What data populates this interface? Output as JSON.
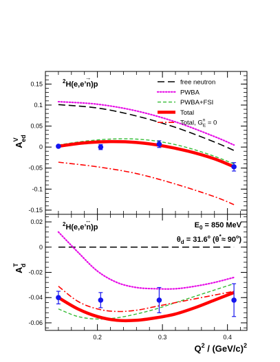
{
  "chart_data": [
    {
      "type": "line",
      "panel": "top",
      "ylabel": "A",
      "ylabel_sup": "V",
      "ylabel_sub": "ed",
      "ylim": [
        -0.16,
        0.18
      ],
      "yticks": [
        -0.15,
        -0.1,
        -0.05,
        0,
        0.05,
        0.1,
        0.15
      ],
      "ytick_labels": [
        "-0.15",
        "-0.1",
        "-0.05",
        "0",
        "0.05",
        "0.1",
        "0.15"
      ],
      "xlim": [
        0.12,
        0.43
      ],
      "reaction_label": {
        "sup": "2",
        "main": "H(e,e’n)p",
        "vec": "→"
      },
      "legend": [
        {
          "label": "free neutron",
          "style": "dash-long",
          "color": "#000000"
        },
        {
          "label": "PWBA",
          "style": "dot",
          "color": "#e60fe6"
        },
        {
          "label": "PWBA+FSI",
          "style": "dash",
          "color": "#33bb33"
        },
        {
          "label": "Total",
          "style": "solid-thick",
          "color": "#ff0000"
        },
        {
          "label": "Total, G",
          "label_sup": "n",
          "label_sub": "E",
          "label_tail": " = 0",
          "style": "dash-dot",
          "color": "#ff0000"
        }
      ],
      "series": [
        {
          "name": "free neutron",
          "color": "#000000",
          "style": "dash-long",
          "x": [
            0.14,
            0.2,
            0.26,
            0.32,
            0.38,
            0.41
          ],
          "y": [
            0.101,
            0.093,
            0.074,
            0.047,
            0.012,
            -0.008
          ]
        },
        {
          "name": "PWBA",
          "color": "#e60fe6",
          "style": "dot",
          "x": [
            0.14,
            0.2,
            0.26,
            0.32,
            0.38,
            0.41
          ],
          "y": [
            0.108,
            0.102,
            0.086,
            0.06,
            0.025,
            0.005
          ]
        },
        {
          "name": "PWBA+FSI",
          "color": "#33bb33",
          "style": "dash",
          "x": [
            0.14,
            0.18,
            0.22,
            0.26,
            0.3,
            0.34,
            0.38,
            0.41
          ],
          "y": [
            0.005,
            0.014,
            0.019,
            0.019,
            0.012,
            -0.002,
            -0.022,
            -0.04
          ]
        },
        {
          "name": "Total",
          "color": "#ff0000",
          "style": "solid-thick",
          "x": [
            0.14,
            0.18,
            0.22,
            0.26,
            0.3,
            0.34,
            0.38,
            0.41
          ],
          "y": [
            0.002,
            0.01,
            0.013,
            0.011,
            0.003,
            -0.01,
            -0.028,
            -0.047
          ]
        },
        {
          "name": "Total, GnE = 0",
          "color": "#ff0000",
          "style": "dash-dot",
          "x": [
            0.14,
            0.2,
            0.26,
            0.32,
            0.38,
            0.41
          ],
          "y": [
            -0.036,
            -0.047,
            -0.063,
            -0.088,
            -0.118,
            -0.137
          ]
        }
      ],
      "points": {
        "color": "#1515ee",
        "x": [
          0.14,
          0.205,
          0.295,
          0.41
        ],
        "y": [
          0.002,
          0.0,
          0.007,
          -0.047
        ],
        "err": [
          0.0,
          0.006,
          0.008,
          0.01
        ]
      }
    },
    {
      "type": "line",
      "panel": "bottom",
      "ylabel": "A",
      "ylabel_sup": "T",
      "ylabel_sub": "d",
      "ylim": [
        -0.066,
        0.026
      ],
      "yticks": [
        -0.06,
        -0.04,
        -0.02,
        0,
        0.02
      ],
      "ytick_labels": [
        "-0.06",
        "-0.04",
        "-0.02",
        "0",
        "0.02"
      ],
      "xlim": [
        0.12,
        0.43
      ],
      "xticks": [
        0.2,
        0.3,
        0.4
      ],
      "xtick_labels": [
        "0.2",
        "0.3",
        "0.4"
      ],
      "xlabel": "Q",
      "xlabel_sup": "2",
      "xlabel_tail": " / (GeV/c)",
      "xlabel_tail_sup": "2",
      "reaction_label": {
        "sup": "2",
        "main": "H(e,e’n)p",
        "vec": "↔"
      },
      "annotations": [
        {
          "text": "E",
          "sub": "0",
          "tail": " = 850 MeV"
        },
        {
          "text": "θ",
          "sub": "d",
          "tail": " = 31.6",
          "deg": "o",
          "paren": " (θ",
          "paren_sup": "*",
          "paren_tail": "≈ 90",
          "paren_deg": "o",
          "close": ")"
        }
      ],
      "series": [
        {
          "name": "free neutron",
          "color": "#000000",
          "style": "dash-long",
          "x": [
            0.14,
            0.41
          ],
          "y": [
            0.0,
            0.0
          ]
        },
        {
          "name": "PWBA",
          "color": "#e60fe6",
          "style": "dot",
          "x": [
            0.14,
            0.17,
            0.2,
            0.23,
            0.26,
            0.29,
            0.32,
            0.35,
            0.38,
            0.41
          ],
          "y": [
            0.012,
            -0.004,
            -0.019,
            -0.028,
            -0.032,
            -0.033,
            -0.033,
            -0.031,
            -0.028,
            -0.024
          ]
        },
        {
          "name": "PWBA+FSI",
          "color": "#33bb33",
          "style": "dash",
          "x": [
            0.14,
            0.17,
            0.2,
            0.23,
            0.26,
            0.29,
            0.32,
            0.35,
            0.38,
            0.41
          ],
          "y": [
            -0.049,
            -0.055,
            -0.057,
            -0.056,
            -0.053,
            -0.049,
            -0.044,
            -0.039,
            -0.034,
            -0.029
          ]
        },
        {
          "name": "Total",
          "color": "#ff0000",
          "style": "solid-thick",
          "x": [
            0.14,
            0.17,
            0.2,
            0.23,
            0.26,
            0.29,
            0.32,
            0.35,
            0.38,
            0.41
          ],
          "y": [
            -0.04,
            -0.049,
            -0.055,
            -0.058,
            -0.058,
            -0.056,
            -0.053,
            -0.048,
            -0.042,
            -0.036
          ]
        },
        {
          "name": "Total, GnE = 0",
          "color": "#ff0000",
          "style": "dash-dot",
          "x": [
            0.14,
            0.17,
            0.2,
            0.23,
            0.26,
            0.29,
            0.32,
            0.35,
            0.38,
            0.41
          ],
          "y": [
            -0.031,
            -0.043,
            -0.049,
            -0.051,
            -0.05,
            -0.047,
            -0.044,
            -0.041,
            -0.038,
            -0.035
          ]
        }
      ],
      "points": {
        "color": "#1515ee",
        "x": [
          0.14,
          0.205,
          0.295,
          0.41
        ],
        "y": [
          -0.04,
          -0.042,
          -0.042,
          -0.042
        ],
        "err": [
          0.005,
          0.006,
          0.01,
          0.013
        ]
      }
    }
  ]
}
